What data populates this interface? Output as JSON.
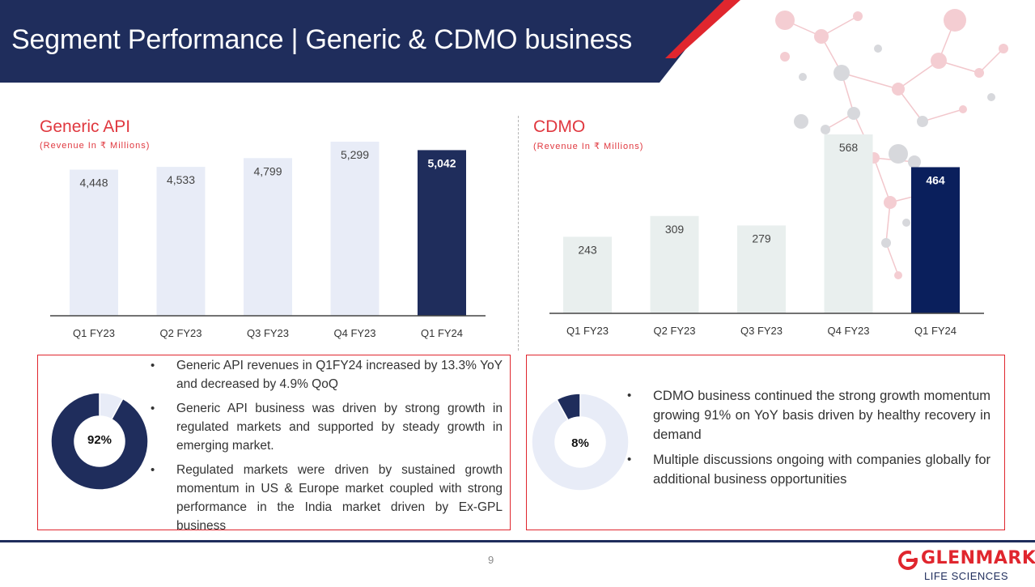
{
  "header": {
    "title": "Segment Performance | Generic & CDMO business"
  },
  "chart_data": [
    {
      "type": "bar",
      "title": "Generic API",
      "subtitle": "(Revenue In ₹ Millions)",
      "categories": [
        "Q1 FY23",
        "Q2 FY23",
        "Q3 FY23",
        "Q4 FY23",
        "Q1 FY24"
      ],
      "values": [
        4448,
        4533,
        4799,
        5299,
        5042
      ],
      "value_labels": [
        "4,448",
        "4,533",
        "4,799",
        "5,299",
        "5,042"
      ],
      "highlight_index": 4,
      "colors": {
        "bar": "#e8ecf7",
        "highlight": "#1f2d5c"
      },
      "grid": false
    },
    {
      "type": "bar",
      "title": "CDMO",
      "subtitle": "(Revenue In ₹ Millions)",
      "categories": [
        "Q1 FY23",
        "Q2 FY23",
        "Q3 FY23",
        "Q4 FY23",
        "Q1 FY24"
      ],
      "values": [
        243,
        309,
        279,
        568,
        464
      ],
      "value_labels": [
        "243",
        "309",
        "279",
        "568",
        "464"
      ],
      "highlight_index": 4,
      "colors": {
        "bar": "#e9efee",
        "highlight": "#0a1f5c"
      },
      "grid": false
    }
  ],
  "generic_box": {
    "donut": {
      "value": 92,
      "label": "92%",
      "color": "#1f2d5c",
      "rest_color": "#e8ecf7"
    },
    "bullets": [
      "Generic API revenues in Q1FY24 increased by 13.3% YoY and decreased by 4.9% QoQ",
      "Generic API business was driven by strong growth in regulated markets and supported by steady growth in emerging market.",
      "Regulated markets were driven by sustained growth momentum in US & Europe market coupled with strong performance in the India market driven by Ex-GPL business"
    ]
  },
  "cdmo_box": {
    "donut": {
      "value": 8,
      "label": "8%",
      "color": "#1f2d5c",
      "rest_color": "#e8ecf7"
    },
    "bullets": [
      "CDMO business continued the strong growth momentum growing 91% on YoY basis driven by healthy recovery in demand",
      "Multiple discussions ongoing with companies globally for additional business opportunities"
    ]
  },
  "footer": {
    "page_number": "9"
  },
  "logo": {
    "word": "GLENMARK",
    "sub": "LIFE SCIENCES"
  },
  "colors": {
    "navy": "#1f2d5c",
    "red": "#e0262e"
  }
}
